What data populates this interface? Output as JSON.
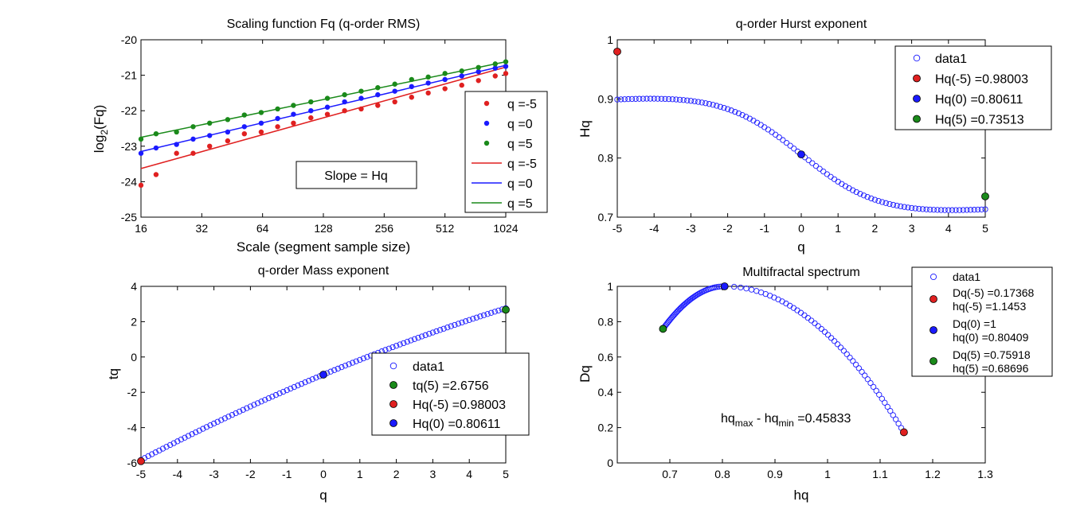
{
  "chart_data": [
    {
      "type": "scatter",
      "title": "Scaling function Fq (q-order RMS)",
      "xlabel": "Scale (segment sample size)",
      "ylabel_main": "log",
      "ylabel_sub": "2",
      "ylabel_tail": "(Fq)",
      "xscale": "log2",
      "xlim": [
        16,
        1024
      ],
      "ylim": [
        -25,
        -20
      ],
      "xtick_labels": [
        "16",
        "32",
        "64",
        "128",
        "256",
        "512",
        "1024"
      ],
      "ytick_labels": [
        "-20",
        "-21",
        "-22",
        "-23",
        "-24",
        "-25"
      ],
      "annotation": "Slope = Hq",
      "legend_position": "right",
      "legend": [
        "q =-5",
        "q =0",
        "q =5",
        "q =-5",
        "q =0",
        "q =5"
      ],
      "x": [
        16,
        19,
        24,
        29,
        35,
        43,
        52,
        63,
        76,
        91,
        111,
        134,
        163,
        197,
        238,
        289,
        350,
        423,
        512,
        620,
        750,
        908,
        1024
      ],
      "series": [
        {
          "label": "q =-5",
          "color": "#e02020",
          "points": [
            -24.1,
            -23.8,
            -23.2,
            -23.2,
            -23.0,
            -22.85,
            -22.65,
            -22.6,
            -22.45,
            -22.35,
            -22.2,
            -22.1,
            -22.0,
            -21.95,
            -21.85,
            -21.75,
            -21.62,
            -21.5,
            -21.38,
            -21.28,
            -21.15,
            -21.02,
            -20.95
          ],
          "fit": [
            -23.63,
            -20.77
          ]
        },
        {
          "label": "q =0",
          "color": "#1a1aff",
          "points": [
            -23.2,
            -23.05,
            -22.95,
            -22.8,
            -22.7,
            -22.6,
            -22.45,
            -22.35,
            -22.22,
            -22.1,
            -22.0,
            -21.9,
            -21.75,
            -21.65,
            -21.55,
            -21.45,
            -21.32,
            -21.22,
            -21.12,
            -21.02,
            -20.9,
            -20.8,
            -20.75
          ],
          "fit": [
            -23.15,
            -20.72
          ]
        },
        {
          "label": "q =5",
          "color": "#1a8a1a",
          "points": [
            -22.8,
            -22.65,
            -22.6,
            -22.45,
            -22.35,
            -22.25,
            -22.12,
            -22.05,
            -21.95,
            -21.85,
            -21.75,
            -21.65,
            -21.55,
            -21.45,
            -21.35,
            -21.25,
            -21.12,
            -21.05,
            -20.95,
            -20.88,
            -20.78,
            -20.68,
            -20.62
          ],
          "fit": [
            -22.75,
            -20.62
          ]
        }
      ]
    },
    {
      "type": "scatter",
      "title": "q-order Hurst exponent",
      "xlabel": "q",
      "ylabel": "Hq",
      "xlim": [
        -5,
        5
      ],
      "ylim": [
        0.7,
        1.0
      ],
      "xtick_labels": [
        "-5",
        "-4",
        "-3",
        "-2",
        "-1",
        "0",
        "1",
        "2",
        "3",
        "4",
        "5"
      ],
      "ytick_labels": [
        "1",
        "0.9",
        "0.8",
        "0.7"
      ],
      "legend_position": "top-right",
      "legend": [
        "data1",
        "Hq(-5) =0.98003",
        "Hq(0) =0.80611",
        "Hq(5) =0.73513"
      ],
      "marker_color": "#1a1aff",
      "highlights": [
        {
          "x": -5,
          "y": 0.98003,
          "color": "#e02020"
        },
        {
          "x": 0,
          "y": 0.80611,
          "color": "#1a1aff"
        },
        {
          "x": 5,
          "y": 0.73513,
          "color": "#1a8a1a"
        }
      ]
    },
    {
      "type": "scatter",
      "title": "q-order Mass exponent",
      "xlabel": "q",
      "ylabel": "tq",
      "xlim": [
        -5,
        5
      ],
      "ylim": [
        -6,
        4
      ],
      "xtick_labels": [
        "-5",
        "-4",
        "-3",
        "-2",
        "-1",
        "0",
        "1",
        "2",
        "3",
        "4",
        "5"
      ],
      "ytick_labels": [
        "4",
        "2",
        "0",
        "-2",
        "-4",
        "-6"
      ],
      "legend_position": "center-right",
      "legend": [
        "data1",
        "tq(5) =2.6756",
        "Hq(-5) =0.98003",
        "Hq(0) =0.80611"
      ],
      "marker_color": "#1a1aff",
      "highlights": [
        {
          "x": 5,
          "y": 2.6756,
          "color": "#1a8a1a"
        },
        {
          "x": -5,
          "y": -5.9,
          "color": "#e02020"
        },
        {
          "x": 0,
          "y": -1.0,
          "color": "#1a1aff"
        }
      ]
    },
    {
      "type": "scatter",
      "title": "Multifractal spectrum",
      "xlabel": "hq",
      "ylabel": "Dq",
      "xlim": [
        0.6,
        1.3
      ],
      "ylim": [
        0,
        1
      ],
      "xtick_labels": [
        "0.7",
        "0.8",
        "0.9",
        "1",
        "1.1",
        "1.2",
        "1.3"
      ],
      "ytick_labels": [
        "1",
        "0.8",
        "0.6",
        "0.4",
        "0.2",
        "0"
      ],
      "annotation_main": "hq",
      "annotation_sub1": "max",
      "annotation_mid": " - hq",
      "annotation_sub2": "min",
      "annotation_tail": " =0.45833",
      "legend_position": "outside-right",
      "legend": [
        "data1",
        "Dq(-5) =0.17368",
        "hq(-5) =1.1453",
        "Dq(0) =1",
        "hq(0) =0.80409",
        "Dq(5) =0.75918",
        "hq(5) =0.68696"
      ],
      "marker_color": "#1a1aff",
      "highlights": [
        {
          "x": 1.1453,
          "y": 0.17368,
          "color": "#e02020"
        },
        {
          "x": 0.80409,
          "y": 1.0,
          "color": "#1a1aff"
        },
        {
          "x": 0.68696,
          "y": 0.75918,
          "color": "#1a8a1a"
        }
      ]
    }
  ]
}
